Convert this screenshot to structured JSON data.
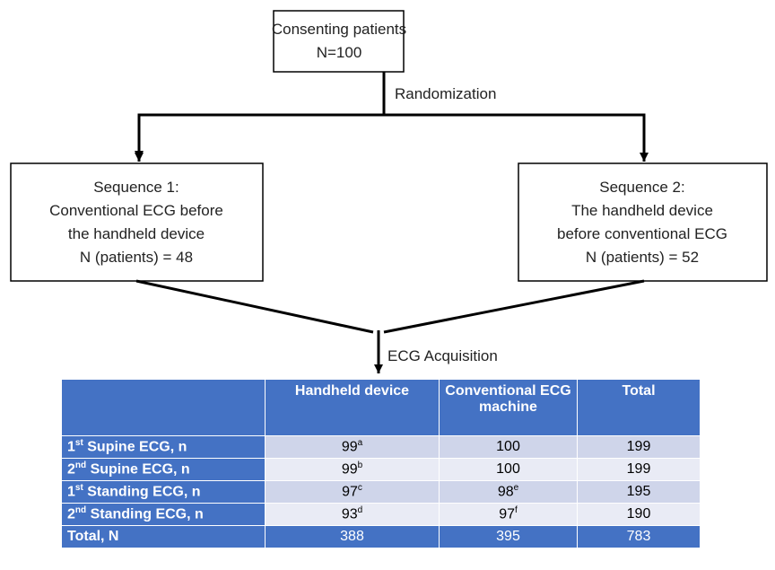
{
  "flowchart": {
    "start": {
      "lines": [
        "Consenting patients",
        "N=100"
      ]
    },
    "randomization": "Randomization",
    "sequences": [
      {
        "lines": [
          "Sequence 1:",
          "Conventional ECG before",
          "the handheld device",
          "N (patients) = 48"
        ]
      },
      {
        "lines": [
          "Sequence 2:",
          "The handheld device",
          "before conventional ECG",
          "N (patients) = 52"
        ]
      }
    ],
    "acquisition": "ECG Acquisition"
  },
  "table": {
    "header": [
      "Handheld device",
      "Conventional ECG machine",
      "Total"
    ],
    "rows": [
      {
        "label": {
          "ordinal": "1",
          "suffix": "st",
          "text": " Supine ECG, n"
        },
        "cells": [
          {
            "value": 99,
            "note": "a"
          },
          {
            "value": 100
          },
          {
            "value": 199
          }
        ]
      },
      {
        "label": {
          "ordinal": "2",
          "suffix": "nd",
          "text": " Supine ECG, n"
        },
        "cells": [
          {
            "value": 99,
            "note": "b"
          },
          {
            "value": 100
          },
          {
            "value": 199
          }
        ]
      },
      {
        "label": {
          "ordinal": "1",
          "suffix": "st",
          "text": " Standing ECG, n"
        },
        "cells": [
          {
            "value": 97,
            "note": "c"
          },
          {
            "value": 98,
            "note": "e"
          },
          {
            "value": 195
          }
        ]
      },
      {
        "label": {
          "ordinal": "2",
          "suffix": "nd",
          "text": " Standing ECG, n"
        },
        "cells": [
          {
            "value": 93,
            "note": "d"
          },
          {
            "value": 97,
            "note": "f"
          },
          {
            "value": 190
          }
        ]
      },
      {
        "label": {
          "text": "Total, N"
        },
        "cells": [
          {
            "value": 388
          },
          {
            "value": 395
          },
          {
            "value": 783
          }
        ]
      }
    ]
  }
}
